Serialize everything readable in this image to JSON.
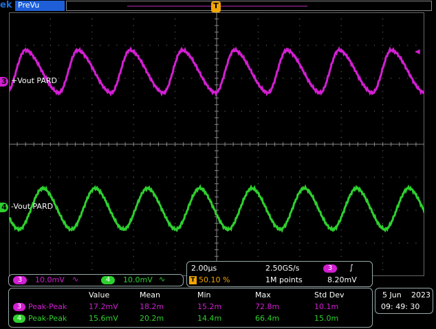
{
  "header": {
    "logo_text": "ek",
    "mode_label": "PreVu"
  },
  "trigger": {
    "position_marker": "T",
    "trigger_marker": "T",
    "level_marker": "◀"
  },
  "channels": [
    {
      "id": "3",
      "name": "+Vout PARD",
      "color": "#d21fd2",
      "scale": "10.0mV",
      "coupling_icon": "∿"
    },
    {
      "id": "4",
      "name": "-Vout PARD",
      "color": "#2ed02e",
      "scale": "10.0mV",
      "coupling_icon": "∿"
    }
  ],
  "timebase": {
    "time_per_div": "2.00µs",
    "sample_rate": "2.50GS/s",
    "trigger_position": "50.10 %",
    "record_length": "1M points",
    "trigger_source": "3",
    "trigger_slope_icon": "∫",
    "trigger_level": "8.20mV"
  },
  "measurements": {
    "headers": [
      "Value",
      "Mean",
      "Min",
      "Max",
      "Std Dev"
    ],
    "rows": [
      {
        "channel": "3",
        "label": "Peak-Peak",
        "values": [
          "17.2mV",
          "18.2m",
          "15.2m",
          "72.8m",
          "10.1m"
        ]
      },
      {
        "channel": "4",
        "label": "Peak-Peak",
        "values": [
          "15.6mV",
          "20.2m",
          "14.4m",
          "66.4m",
          "15.0m"
        ]
      }
    ]
  },
  "datetime": {
    "date": "5 Jun",
    "year": "2023",
    "time": "09: 49: 30"
  }
}
